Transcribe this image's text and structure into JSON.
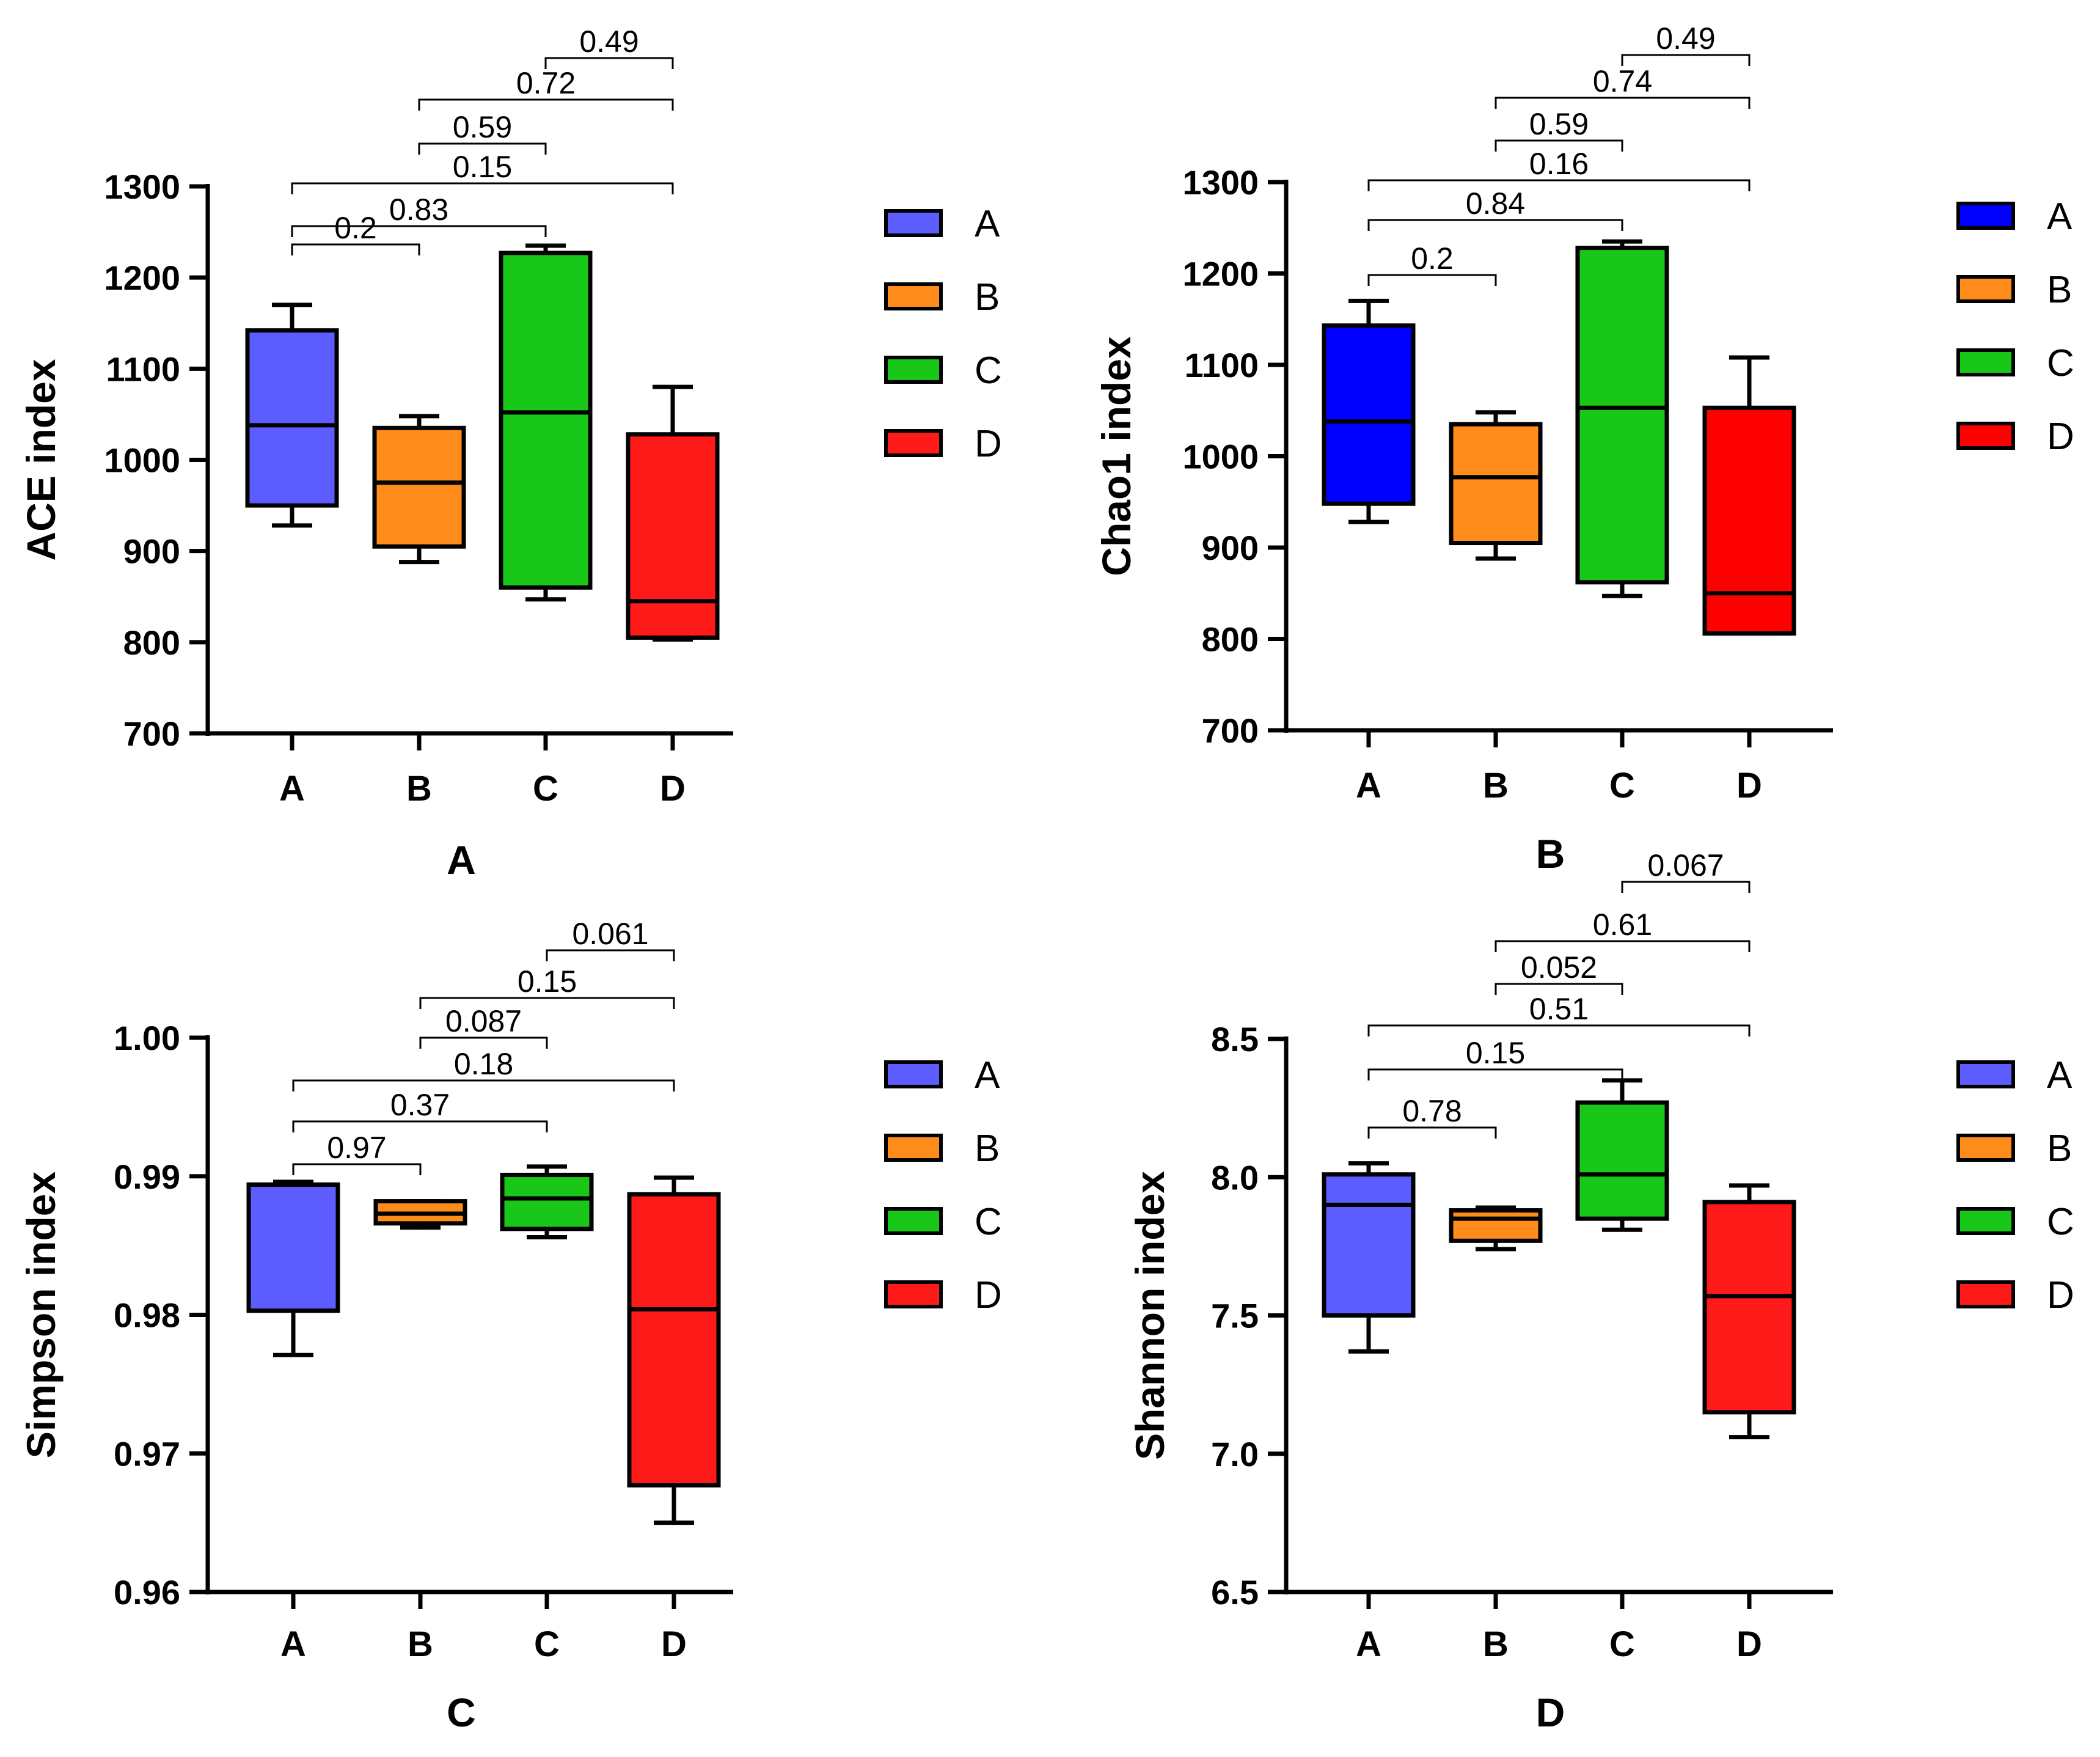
{
  "chart_data": [
    {
      "type": "box",
      "panel_label": "A",
      "ylabel": "ACE index",
      "ylim": [
        700,
        1300
      ],
      "yticks": [
        "700",
        "800",
        "900",
        "1000",
        "1100",
        "1200",
        "1300"
      ],
      "categories": [
        "A",
        "B",
        "C",
        "D"
      ],
      "colors": [
        "#5c5cff",
        "#ff8c1a",
        "#19c719",
        "#ff1a1a"
      ],
      "boxes": [
        {
          "min": 928,
          "q1": 950,
          "median": 1038,
          "q3": 1142,
          "max": 1170
        },
        {
          "min": 888,
          "q1": 905,
          "median": 975,
          "q3": 1035,
          "max": 1048
        },
        {
          "min": 847,
          "q1": 860,
          "median": 1052,
          "q3": 1227,
          "max": 1235
        },
        {
          "min": 803,
          "q1": 805,
          "median": 845,
          "q3": 1028,
          "max": 1080
        }
      ],
      "comparisons": [
        {
          "from": "A",
          "to": "B",
          "p": "0.2"
        },
        {
          "from": "A",
          "to": "C",
          "p": "0.83"
        },
        {
          "from": "A",
          "to": "D",
          "p": "0.15"
        },
        {
          "from": "B",
          "to": "C",
          "p": "0.59"
        },
        {
          "from": "B",
          "to": "D",
          "p": "0.72"
        },
        {
          "from": "C",
          "to": "D",
          "p": "0.49"
        }
      ],
      "legend": {
        "position": "right",
        "entries": [
          "A",
          "B",
          "C",
          "D"
        ]
      }
    },
    {
      "type": "box",
      "panel_label": "B",
      "ylabel": "Chao1 index",
      "ylim": [
        700,
        1300
      ],
      "yticks": [
        "700",
        "800",
        "900",
        "1000",
        "1100",
        "1200",
        "1300"
      ],
      "categories": [
        "A",
        "B",
        "C",
        "D"
      ],
      "colors": [
        "#0000ff",
        "#ff8c1a",
        "#19c719",
        "#ff0000"
      ],
      "boxes": [
        {
          "min": 928,
          "q1": 948,
          "median": 1038,
          "q3": 1143,
          "max": 1170
        },
        {
          "min": 888,
          "q1": 905,
          "median": 977,
          "q3": 1035,
          "max": 1048
        },
        {
          "min": 847,
          "q1": 862,
          "median": 1053,
          "q3": 1228,
          "max": 1235
        },
        {
          "min": 806,
          "q1": 806,
          "median": 850,
          "q3": 1053,
          "max": 1108
        }
      ],
      "comparisons": [
        {
          "from": "A",
          "to": "B",
          "p": "0.2"
        },
        {
          "from": "A",
          "to": "C",
          "p": "0.84"
        },
        {
          "from": "A",
          "to": "D",
          "p": "0.16"
        },
        {
          "from": "B",
          "to": "C",
          "p": "0.59"
        },
        {
          "from": "B",
          "to": "D",
          "p": "0.74"
        },
        {
          "from": "C",
          "to": "D",
          "p": "0.49"
        }
      ],
      "legend": {
        "position": "right",
        "entries": [
          "A",
          "B",
          "C",
          "D"
        ]
      }
    },
    {
      "type": "box",
      "panel_label": "C",
      "ylabel": "Simpson index",
      "ylim": [
        0.96,
        1.0
      ],
      "yticks": [
        "0.96",
        "0.97",
        "0.98",
        "0.99",
        "1.00"
      ],
      "categories": [
        "A",
        "B",
        "C",
        "D"
      ],
      "colors": [
        "#5c5cff",
        "#ff8c1a",
        "#19c719",
        "#ff1a1a"
      ],
      "boxes": [
        {
          "min": 0.9771,
          "q1": 0.9803,
          "median": 0.9894,
          "q3": 0.9894,
          "max": 0.9896
        },
        {
          "min": 0.9863,
          "q1": 0.9866,
          "median": 0.9873,
          "q3": 0.9882,
          "max": 0.9882
        },
        {
          "min": 0.9856,
          "q1": 0.9862,
          "median": 0.9884,
          "q3": 0.9901,
          "max": 0.9907
        },
        {
          "min": 0.965,
          "q1": 0.9677,
          "median": 0.9804,
          "q3": 0.9887,
          "max": 0.9899
        }
      ],
      "comparisons": [
        {
          "from": "A",
          "to": "B",
          "p": "0.97"
        },
        {
          "from": "A",
          "to": "C",
          "p": "0.37"
        },
        {
          "from": "A",
          "to": "D",
          "p": "0.18"
        },
        {
          "from": "B",
          "to": "C",
          "p": "0.087"
        },
        {
          "from": "B",
          "to": "D",
          "p": "0.15"
        },
        {
          "from": "C",
          "to": "D",
          "p": "0.061"
        }
      ],
      "legend": {
        "position": "right",
        "entries": [
          "A",
          "B",
          "C",
          "D"
        ]
      }
    },
    {
      "type": "box",
      "panel_label": "D",
      "ylabel": "Shannon index",
      "ylim": [
        6.5,
        8.5
      ],
      "yticks": [
        "6.5",
        "7.0",
        "7.5",
        "8.0",
        "8.5"
      ],
      "categories": [
        "A",
        "B",
        "C",
        "D"
      ],
      "colors": [
        "#5c5cff",
        "#ff8c1a",
        "#19c719",
        "#ff1a1a"
      ],
      "boxes": [
        {
          "min": 7.37,
          "q1": 7.5,
          "median": 7.9,
          "q3": 8.01,
          "max": 8.05
        },
        {
          "min": 7.74,
          "q1": 7.77,
          "median": 7.85,
          "q3": 7.88,
          "max": 7.89
        },
        {
          "min": 7.81,
          "q1": 7.85,
          "median": 8.01,
          "q3": 8.27,
          "max": 8.35
        },
        {
          "min": 7.06,
          "q1": 7.15,
          "median": 7.57,
          "q3": 7.91,
          "max": 7.97
        }
      ],
      "comparisons": [
        {
          "from": "A",
          "to": "B",
          "p": "0.78"
        },
        {
          "from": "A",
          "to": "C",
          "p": "0.15"
        },
        {
          "from": "A",
          "to": "D",
          "p": "0.51"
        },
        {
          "from": "B",
          "to": "C",
          "p": "0.052"
        },
        {
          "from": "B",
          "to": "D",
          "p": "0.61"
        },
        {
          "from": "C",
          "to": "D",
          "p": "0.067"
        }
      ],
      "legend": {
        "position": "right",
        "entries": [
          "A",
          "B",
          "C",
          "D"
        ]
      }
    }
  ]
}
